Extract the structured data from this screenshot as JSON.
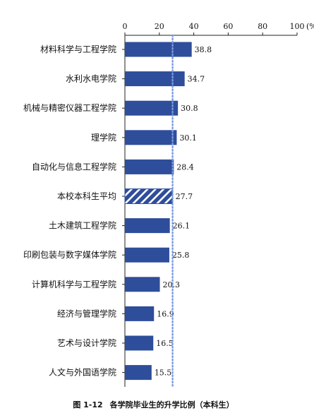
{
  "chart_data": {
    "type": "bar",
    "orientation": "horizontal",
    "categories": [
      "材料科学与工程学院",
      "水利水电学院",
      "机械与精密仪器工程学院",
      "理学院",
      "自动化与信息工程学院",
      "本校本科生平均",
      "土木建筑工程学院",
      "印刷包装与数字媒体学院",
      "计算机科学与工程学院",
      "经济与管理学院",
      "艺术与设计学院",
      "人文与外国语学院"
    ],
    "values": [
      38.8,
      34.7,
      30.8,
      30.1,
      28.4,
      27.7,
      26.1,
      25.8,
      20.3,
      16.9,
      16.5,
      15.5
    ],
    "value_labels": [
      "38.8",
      "34.7",
      "30.8",
      "30.1",
      "28.4",
      "27.7",
      "26.1",
      "25.8",
      "20.3",
      "16.9",
      "16.5",
      "15.5"
    ],
    "highlight_category": "本校本科生平均",
    "reference_line": 27.7,
    "xlim": [
      0,
      100
    ],
    "x_ticks": [
      0,
      20,
      40,
      60,
      80,
      100
    ],
    "x_tick_labels": [
      "0",
      "20",
      "40",
      "60",
      "80",
      "100"
    ],
    "x_unit": "(%)",
    "axis_position": "top",
    "grid": false,
    "legend": "none",
    "colors": {
      "bar": "#2e4d9b",
      "reference_line": "#7a9be0",
      "hatch_stripe": "#ffffff"
    }
  },
  "caption": {
    "figure_number": "图 1-12",
    "title": "各学院毕业生的升学比例（本科生）"
  }
}
